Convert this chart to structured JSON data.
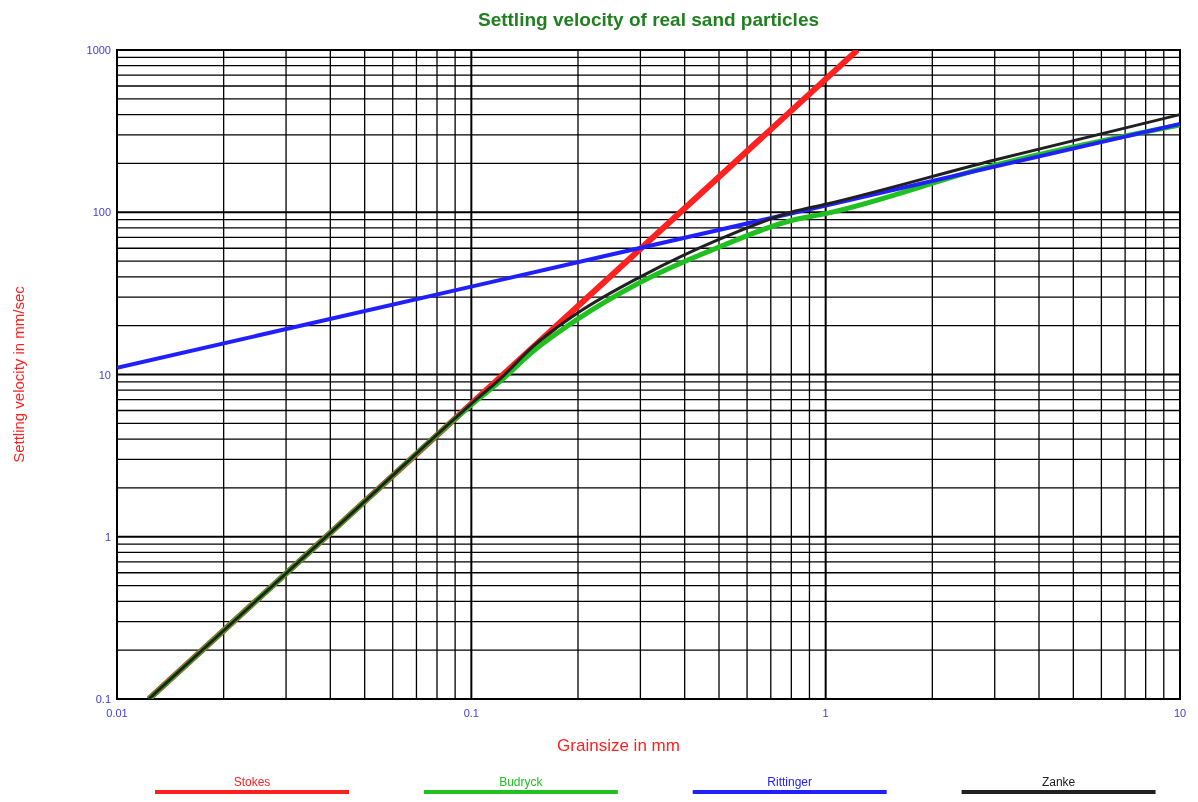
{
  "chart_data": {
    "type": "line",
    "title": "Settling velocity of real sand particles",
    "xlabel": "Grainsize in mm",
    "ylabel": "Settling velocity in mm/sec",
    "log": "xy",
    "grid": true,
    "legend": "bottom",
    "line_style": "solid",
    "marker": "none",
    "xlim": [
      0.01,
      10
    ],
    "ylim": [
      0.1,
      1000
    ],
    "xticks": [
      0.01,
      {
        "value": 0.02,
        "label": null
      },
      {
        "value": 0.03,
        "label": null
      },
      {
        "value": 0.04,
        "label": null
      },
      {
        "value": 0.05,
        "label": null
      },
      {
        "value": 0.06,
        "label": null
      },
      {
        "value": 0.07,
        "label": null
      },
      {
        "value": 0.08,
        "label": null
      },
      {
        "value": 0.09,
        "label": null
      },
      0.1,
      {
        "value": 0.2,
        "label": null
      },
      {
        "value": 0.3,
        "label": null
      },
      {
        "value": 0.4,
        "label": null
      },
      {
        "value": 0.5,
        "label": null
      },
      {
        "value": 0.6,
        "label": null
      },
      {
        "value": 0.7,
        "label": null
      },
      {
        "value": 0.8,
        "label": null
      },
      {
        "value": 0.9,
        "label": null
      },
      1,
      {
        "value": 2,
        "label": null
      },
      {
        "value": 3,
        "label": null
      },
      {
        "value": 4,
        "label": null
      },
      {
        "value": 5,
        "label": null
      },
      {
        "value": 6,
        "label": null
      },
      {
        "value": 7,
        "label": null
      },
      {
        "value": 8,
        "label": null
      },
      {
        "value": 9,
        "label": null
      },
      10
    ],
    "yticks": [
      0.1,
      {
        "value": 0.2,
        "label": null
      },
      {
        "value": 0.3,
        "label": null
      },
      {
        "value": 0.4,
        "label": null
      },
      {
        "value": 0.5,
        "label": null
      },
      {
        "value": 0.6,
        "label": null
      },
      {
        "value": 0.7,
        "label": null
      },
      {
        "value": 0.8,
        "label": null
      },
      {
        "value": 0.9,
        "label": null
      },
      1,
      {
        "value": 2,
        "label": null
      },
      {
        "value": 3,
        "label": null
      },
      {
        "value": 4,
        "label": null
      },
      {
        "value": 5,
        "label": null
      },
      {
        "value": 6,
        "label": null
      },
      {
        "value": 7,
        "label": null
      },
      {
        "value": 8,
        "label": null
      },
      {
        "value": 9,
        "label": null
      },
      10,
      {
        "value": 20,
        "label": null
      },
      {
        "value": 30,
        "label": null
      },
      {
        "value": 40,
        "label": null
      },
      {
        "value": 50,
        "label": null
      },
      {
        "value": 60,
        "label": null
      },
      {
        "value": 70,
        "label": null
      },
      {
        "value": 80,
        "label": null
      },
      {
        "value": 90,
        "label": null
      },
      100,
      {
        "value": 200,
        "label": null
      },
      {
        "value": 300,
        "label": null
      },
      {
        "value": 400,
        "label": null
      },
      {
        "value": 500,
        "label": null
      },
      {
        "value": 600,
        "label": null
      },
      {
        "value": 700,
        "label": null
      },
      {
        "value": 800,
        "label": null
      },
      {
        "value": 900,
        "label": null
      },
      1000
    ],
    "series": [
      {
        "name": "Stokes",
        "color": "#ff2020",
        "x": [
          0.0123,
          0.1,
          1.23
        ],
        "values": [
          0.1,
          6.6,
          1000
        ]
      },
      {
        "name": "Budryck",
        "color": "#20c020",
        "x": [
          0.0123,
          0.05,
          0.1,
          0.12,
          0.15,
          0.2,
          0.3,
          0.5,
          0.8,
          1,
          3,
          10
        ],
        "values": [
          0.1,
          1.65,
          6.5,
          9,
          14,
          22,
          37,
          61,
          89,
          98,
          195,
          345
        ]
      },
      {
        "name": "Rittinger",
        "color": "#2020ff",
        "x": [
          0.01,
          0.1,
          1,
          10
        ],
        "values": [
          11,
          34.8,
          110,
          350
        ]
      },
      {
        "name": "Zanke",
        "color": "#202020",
        "x": [
          0.0123,
          0.05,
          0.1,
          0.12,
          0.15,
          0.2,
          0.3,
          0.5,
          0.8,
          1,
          3,
          10
        ],
        "values": [
          0.1,
          1.65,
          6.6,
          9.3,
          15,
          24,
          40,
          68,
          100,
          112,
          210,
          400
        ]
      }
    ]
  }
}
